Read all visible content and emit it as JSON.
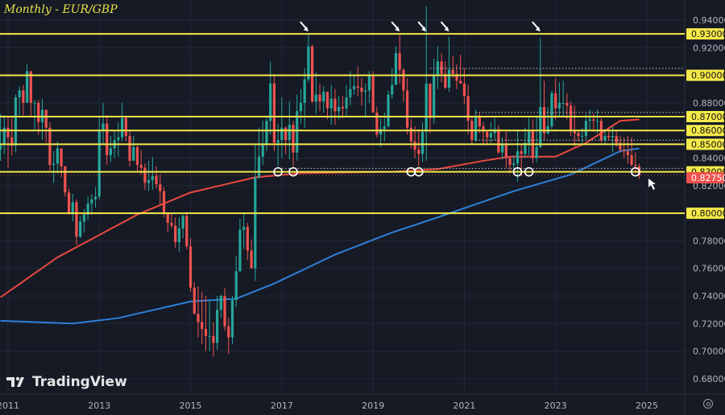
{
  "title": "Monthly - EUR/GBP",
  "brand": "TradingView",
  "colors": {
    "background": "#161a25",
    "up": "#26a69a",
    "down": "#ef5350",
    "level": "#f5e94a",
    "ma_red": "#e8493f",
    "ma_blue": "#2f7fd8",
    "price_label": "#ef5350",
    "axis_text": "#b2b5be",
    "grid": "#232837"
  },
  "chart_data": {
    "type": "candlestick",
    "title": "Monthly - EUR/GBP",
    "start_month": "2010-11",
    "ylim": [
      0.67,
      0.955
    ],
    "grid": true,
    "y_ticks": [
      "0.94000",
      "0.92000",
      "0.88000",
      "0.84000",
      "0.82000",
      "0.78000",
      "0.76000",
      "0.74000",
      "0.72000",
      "0.70000",
      "0.68000"
    ],
    "x_ticks": [
      "2011",
      "2013",
      "2015",
      "2017",
      "2019",
      "2021",
      "2023",
      "2025"
    ],
    "close": [
      0.85,
      0.862,
      0.855,
      0.849,
      0.884,
      0.889,
      0.88,
      0.903,
      0.88,
      0.88,
      0.866,
      0.875,
      0.862,
      0.835,
      0.836,
      0.847,
      0.834,
      0.815,
      0.8,
      0.808,
      0.783,
      0.794,
      0.799,
      0.807,
      0.81,
      0.812,
      0.86,
      0.865,
      0.842,
      0.847,
      0.853,
      0.855,
      0.869,
      0.856,
      0.838,
      0.848,
      0.835,
      0.833,
      0.822,
      0.824,
      0.827,
      0.821,
      0.816,
      0.8,
      0.793,
      0.791,
      0.779,
      0.789,
      0.798,
      0.776,
      0.746,
      0.727,
      0.721,
      0.716,
      0.711,
      0.711,
      0.706,
      0.73,
      0.74,
      0.718,
      0.71,
      0.737,
      0.758,
      0.788,
      0.79,
      0.773,
      0.76,
      0.826,
      0.841,
      0.85,
      0.867,
      0.894,
      0.851,
      0.853,
      0.862,
      0.853,
      0.864,
      0.844,
      0.874,
      0.88,
      0.897,
      0.921,
      0.881,
      0.886,
      0.881,
      0.888,
      0.876,
      0.883,
      0.874,
      0.877,
      0.876,
      0.884,
      0.89,
      0.892,
      0.891,
      0.888,
      0.889,
      0.9,
      0.873,
      0.857,
      0.861,
      0.863,
      0.886,
      0.893,
      0.916,
      0.904,
      0.889,
      0.862,
      0.852,
      0.846,
      0.843,
      0.859,
      0.894,
      0.869,
      0.9,
      0.91,
      0.901,
      0.891,
      0.904,
      0.901,
      0.896,
      0.894,
      0.885,
      0.867,
      0.853,
      0.87,
      0.863,
      0.859,
      0.855,
      0.858,
      0.861,
      0.844,
      0.85,
      0.84,
      0.835,
      0.836,
      0.845,
      0.843,
      0.851,
      0.86,
      0.84,
      0.848,
      0.877,
      0.858,
      0.863,
      0.887,
      0.876,
      0.88,
      0.88,
      0.878,
      0.86,
      0.858,
      0.856,
      0.856,
      0.867,
      0.868,
      0.867,
      0.867,
      0.853,
      0.856,
      0.855,
      0.856,
      0.851,
      0.846,
      0.845,
      0.842,
      0.835,
      0.834,
      0.8275
    ],
    "open_first": 0.846,
    "high": [
      0.872,
      0.871,
      0.87,
      0.869,
      0.886,
      0.892,
      0.893,
      0.908,
      0.903,
      0.882,
      0.882,
      0.883,
      0.875,
      0.866,
      0.845,
      0.852,
      0.847,
      0.834,
      0.818,
      0.814,
      0.81,
      0.798,
      0.803,
      0.812,
      0.814,
      0.819,
      0.87,
      0.88,
      0.871,
      0.856,
      0.86,
      0.866,
      0.88,
      0.87,
      0.86,
      0.856,
      0.849,
      0.846,
      0.836,
      0.838,
      0.841,
      0.834,
      0.828,
      0.819,
      0.8,
      0.8,
      0.797,
      0.797,
      0.799,
      0.801,
      0.782,
      0.75,
      0.747,
      0.743,
      0.74,
      0.737,
      0.721,
      0.74,
      0.741,
      0.746,
      0.724,
      0.74,
      0.769,
      0.796,
      0.8,
      0.793,
      0.781,
      0.85,
      0.862,
      0.867,
      0.87,
      0.91,
      0.9,
      0.865,
      0.884,
      0.863,
      0.881,
      0.867,
      0.886,
      0.89,
      0.905,
      0.93,
      0.922,
      0.902,
      0.894,
      0.892,
      0.888,
      0.893,
      0.89,
      0.885,
      0.885,
      0.893,
      0.903,
      0.9,
      0.906,
      0.898,
      0.894,
      0.903,
      0.903,
      0.877,
      0.869,
      0.873,
      0.889,
      0.905,
      0.921,
      0.93,
      0.905,
      0.898,
      0.868,
      0.863,
      0.86,
      0.866,
      0.95,
      0.892,
      0.912,
      0.921,
      0.916,
      0.91,
      0.928,
      0.914,
      0.908,
      0.915,
      0.905,
      0.893,
      0.87,
      0.875,
      0.873,
      0.866,
      0.86,
      0.866,
      0.869,
      0.864,
      0.855,
      0.859,
      0.841,
      0.842,
      0.86,
      0.85,
      0.862,
      0.869,
      0.868,
      0.87,
      0.927,
      0.896,
      0.877,
      0.889,
      0.898,
      0.895,
      0.896,
      0.887,
      0.881,
      0.878,
      0.86,
      0.862,
      0.872,
      0.875,
      0.872,
      0.875,
      0.869,
      0.861,
      0.862,
      0.863,
      0.86,
      0.856,
      0.855,
      0.856,
      0.855,
      0.844,
      0.836
    ],
    "low": [
      0.838,
      0.843,
      0.833,
      0.842,
      0.844,
      0.871,
      0.871,
      0.88,
      0.87,
      0.861,
      0.857,
      0.853,
      0.851,
      0.831,
      0.822,
      0.829,
      0.826,
      0.812,
      0.799,
      0.794,
      0.777,
      0.782,
      0.786,
      0.795,
      0.799,
      0.804,
      0.81,
      0.85,
      0.835,
      0.837,
      0.84,
      0.841,
      0.852,
      0.852,
      0.834,
      0.838,
      0.83,
      0.828,
      0.817,
      0.816,
      0.817,
      0.818,
      0.806,
      0.797,
      0.786,
      0.789,
      0.775,
      0.772,
      0.782,
      0.774,
      0.743,
      0.727,
      0.71,
      0.705,
      0.7,
      0.7,
      0.696,
      0.701,
      0.724,
      0.715,
      0.698,
      0.705,
      0.732,
      0.757,
      0.774,
      0.766,
      0.76,
      0.751,
      0.825,
      0.835,
      0.845,
      0.857,
      0.845,
      0.834,
      0.84,
      0.843,
      0.839,
      0.834,
      0.838,
      0.865,
      0.862,
      0.895,
      0.88,
      0.872,
      0.874,
      0.873,
      0.868,
      0.864,
      0.864,
      0.868,
      0.869,
      0.871,
      0.878,
      0.886,
      0.885,
      0.878,
      0.869,
      0.88,
      0.873,
      0.855,
      0.848,
      0.852,
      0.862,
      0.883,
      0.893,
      0.894,
      0.881,
      0.857,
      0.847,
      0.84,
      0.834,
      0.837,
      0.838,
      0.858,
      0.865,
      0.89,
      0.895,
      0.89,
      0.888,
      0.898,
      0.89,
      0.894,
      0.879,
      0.857,
      0.85,
      0.852,
      0.858,
      0.849,
      0.849,
      0.851,
      0.853,
      0.843,
      0.839,
      0.833,
      0.829,
      0.829,
      0.823,
      0.827,
      0.84,
      0.842,
      0.836,
      0.837,
      0.847,
      0.853,
      0.857,
      0.861,
      0.868,
      0.87,
      0.87,
      0.868,
      0.856,
      0.848,
      0.852,
      0.851,
      0.853,
      0.86,
      0.859,
      0.858,
      0.851,
      0.849,
      0.853,
      0.844,
      0.848,
      0.844,
      0.84,
      0.836,
      0.834,
      0.829,
      0.825
    ],
    "moving_averages": [
      {
        "color": "#e8493f",
        "points": [
          [
            "2010-11",
            0.739
          ],
          [
            "2012-02",
            0.768
          ],
          [
            "2013-11",
            0.799
          ],
          [
            "2015-01",
            0.815
          ],
          [
            "2016-06",
            0.826
          ],
          [
            "2017-06",
            0.829
          ],
          [
            "2019-06",
            0.83
          ],
          [
            "2020-06",
            0.832
          ],
          [
            "2021-06",
            0.838
          ],
          [
            "2022-01",
            0.841
          ],
          [
            "2023-01",
            0.841
          ],
          [
            "2023-09",
            0.851
          ],
          [
            "2024-06",
            0.867
          ],
          [
            "2024-11",
            0.868
          ]
        ]
      },
      {
        "color": "#2f7fd8",
        "points": [
          [
            "2010-11",
            0.722
          ],
          [
            "2012-06",
            0.72
          ],
          [
            "2013-06",
            0.724
          ],
          [
            "2015-01",
            0.736
          ],
          [
            "2016-01",
            0.738
          ],
          [
            "2016-11",
            0.749
          ],
          [
            "2018-03",
            0.77
          ],
          [
            "2019-06",
            0.786
          ],
          [
            "2020-06",
            0.797
          ],
          [
            "2022-02",
            0.816
          ],
          [
            "2023-05",
            0.828
          ],
          [
            "2024-06",
            0.845
          ],
          [
            "2024-11",
            0.847
          ]
        ]
      }
    ],
    "levels": [
      {
        "value": 0.93,
        "label": "0.93000"
      },
      {
        "value": 0.9,
        "label": "0.90000"
      },
      {
        "value": 0.87,
        "label": "0.87000"
      },
      {
        "value": 0.86,
        "label": "0.86000"
      },
      {
        "value": 0.85,
        "label": "0.85000"
      },
      {
        "value": 0.83,
        "label": "0.83000"
      },
      {
        "value": 0.8,
        "label": "0.80000"
      }
    ],
    "dotted_levels": [
      {
        "value": 0.905,
        "from": "2020-04"
      },
      {
        "value": 0.873,
        "from": "2021-04"
      },
      {
        "value": 0.853,
        "from": "2021-04"
      },
      {
        "value": 0.8325,
        "from": "2017-01"
      }
    ],
    "current_price": {
      "value": 0.8275,
      "label": "0.82750"
    },
    "arrow_annotations": [
      "2017-08",
      "2019-08",
      "2020-03",
      "2020-09",
      "2022-09"
    ],
    "circle_annotations": [
      "2016-12",
      "2017-04",
      "2019-11",
      "2020-01",
      "2022-03",
      "2022-06",
      "2024-10"
    ]
  }
}
